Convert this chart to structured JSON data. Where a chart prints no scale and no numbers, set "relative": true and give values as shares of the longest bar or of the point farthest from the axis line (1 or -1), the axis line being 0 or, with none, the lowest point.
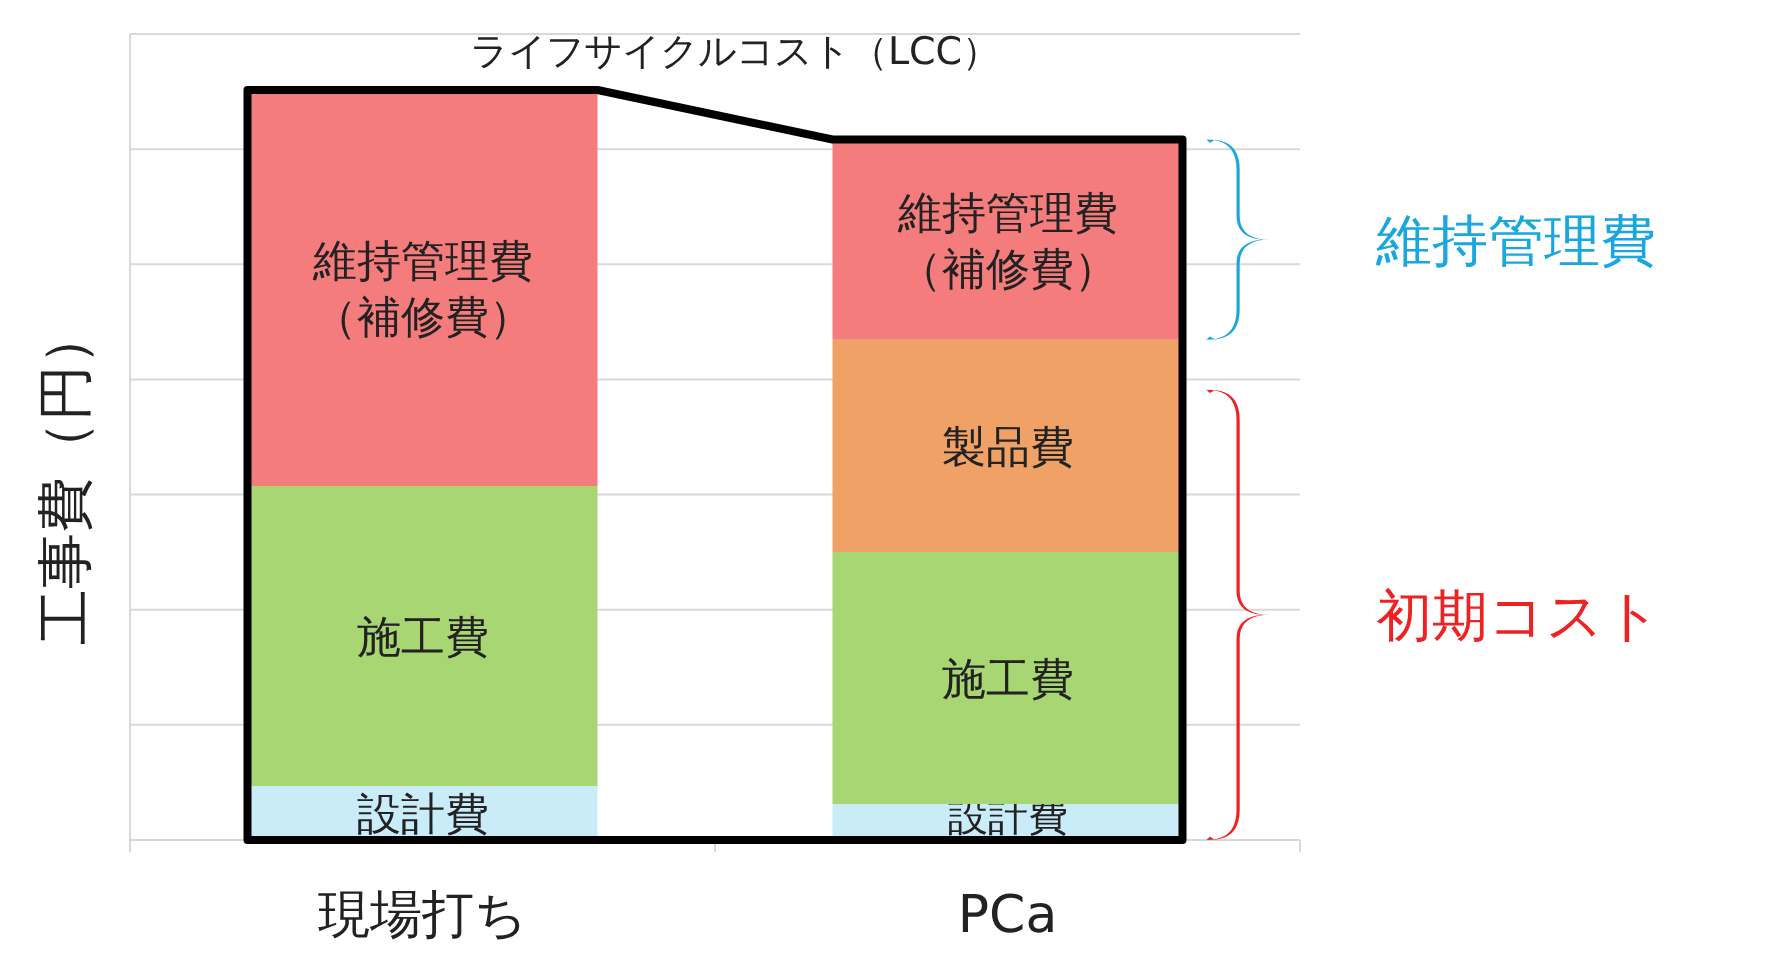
{
  "chart_data": {
    "type": "bar",
    "stacked": true,
    "relative": true,
    "grid": true,
    "legend": false,
    "ylabel": "工事費（円）",
    "categories": [
      "現場打ち",
      "PCa"
    ],
    "series": [
      {
        "name": "設計費",
        "color": "#c9ecf8",
        "values": [
          0.072,
          0.048
        ]
      },
      {
        "name": "施工費",
        "color": "#a8d672",
        "values": [
          0.4,
          0.336
        ]
      },
      {
        "name": "製品費",
        "color": "#f0a266",
        "values": [
          null,
          0.283
        ]
      },
      {
        "name": "維持管理費（補修費）",
        "color": "#f47c7c",
        "values": [
          0.528,
          0.267
        ]
      }
    ],
    "annotations": [
      "ライフサイクルコスト（LCC）",
      "維持管理費",
      "初期コスト"
    ]
  }
}
